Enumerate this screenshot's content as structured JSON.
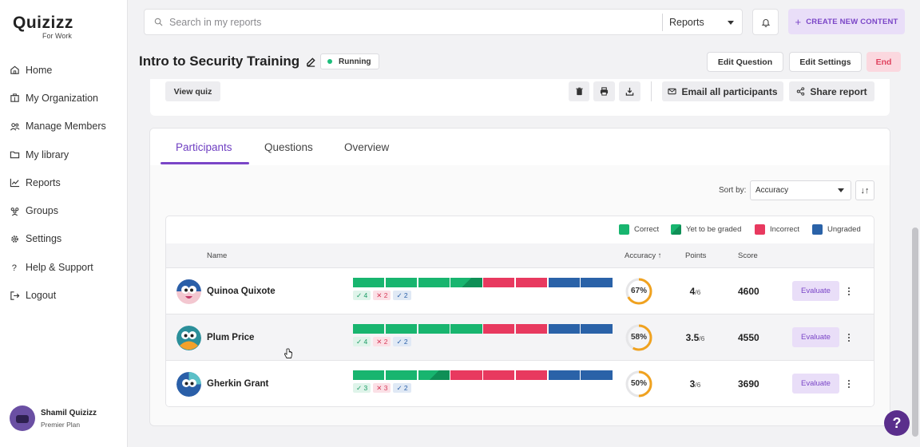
{
  "app": {
    "logo": "Quizizz",
    "logo_sub": "For Work"
  },
  "sidebar": {
    "items": [
      {
        "label": "Home",
        "icon": "home-icon"
      },
      {
        "label": "My Organization",
        "icon": "building-icon"
      },
      {
        "label": "Manage Members",
        "icon": "users-icon"
      },
      {
        "label": "My library",
        "icon": "folder-icon"
      },
      {
        "label": "Reports",
        "icon": "chart-icon"
      },
      {
        "label": "Groups",
        "icon": "group-icon"
      },
      {
        "label": "Settings",
        "icon": "gear-icon"
      },
      {
        "label": "Help & Support",
        "icon": "question-icon"
      },
      {
        "label": "Logout",
        "icon": "logout-icon"
      }
    ],
    "user": {
      "name": "Shamil Quizizz",
      "plan": "Premier Plan"
    }
  },
  "topbar": {
    "search_placeholder": "Search in my reports",
    "scope": "Reports",
    "create_label": "CREATE NEW CONTENT"
  },
  "header": {
    "title": "Intro to Security Training",
    "status": "Running",
    "edit_question": "Edit Question",
    "edit_settings": "Edit Settings",
    "end": "End"
  },
  "toolbar": {
    "view_quiz": "View quiz",
    "email_all": "Email all participants",
    "share_report": "Share report"
  },
  "tabs": [
    {
      "label": "Participants",
      "active": true
    },
    {
      "label": "Questions",
      "active": false
    },
    {
      "label": "Overview",
      "active": false
    }
  ],
  "sort": {
    "label": "Sort by:",
    "value": "Accuracy",
    "direction_glyph": "↓↑"
  },
  "legend": [
    {
      "label": "Correct",
      "color": "#18b56f"
    },
    {
      "label": "Yet to be graded",
      "color": "#0f8f56"
    },
    {
      "label": "Incorrect",
      "color": "#e8395f"
    },
    {
      "label": "Ungraded",
      "color": "#2a62a8"
    }
  ],
  "columns": {
    "name": "Name",
    "accuracy": "Accuracy ↑",
    "points": "Points",
    "score": "Score"
  },
  "colors": {
    "correct": "#18b56f",
    "incorrect": "#e8395f",
    "ungraded": "#2a62a8",
    "accent": "#7a45c7",
    "accuracy_ring": "#f0a21f"
  },
  "participants": [
    {
      "name": "Quinoa Quixote",
      "bars": [
        "c",
        "c",
        "c",
        "y",
        "i",
        "i",
        "u",
        "u"
      ],
      "correct": "✓ 4",
      "incorrect": "✕ 2",
      "ungraded": "✓ 2",
      "accuracy": "67%",
      "accuracy_value": 0.67,
      "points": "4",
      "points_total": "/6",
      "score": "4600",
      "evaluate": "Evaluate"
    },
    {
      "name": "Plum Price",
      "bars": [
        "c",
        "c",
        "c",
        "c",
        "i",
        "i",
        "u",
        "u"
      ],
      "correct": "✓ 4",
      "incorrect": "✕ 2",
      "ungraded": "✓ 2",
      "accuracy": "58%",
      "accuracy_value": 0.58,
      "points": "3.5",
      "points_total": "/6",
      "score": "4550",
      "evaluate": "Evaluate"
    },
    {
      "name": "Gherkin Grant",
      "bars": [
        "c",
        "c",
        "y",
        "i",
        "i",
        "i",
        "u",
        "u"
      ],
      "correct": "✓ 3",
      "incorrect": "✕ 3",
      "ungraded": "✓ 2",
      "accuracy": "50%",
      "accuracy_value": 0.5,
      "points": "3",
      "points_total": "/6",
      "score": "3690",
      "evaluate": "Evaluate"
    }
  ],
  "help_glyph": "?"
}
